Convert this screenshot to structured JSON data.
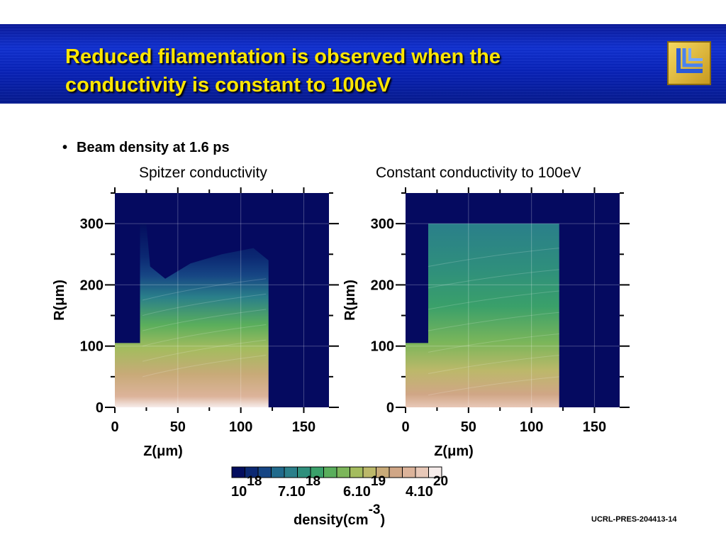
{
  "header": {
    "title_line1": "Reduced filamentation is observed when the",
    "title_line2": "conductivity is constant to 100eV"
  },
  "bullet": {
    "text": "Beam density at 1.6 ps"
  },
  "footer": {
    "id": "UCRL-PRES-204413-14"
  },
  "colors": {
    "header_bg": "#0a1fb0",
    "title_text": "#ffe600",
    "plot_bg": "#050a60"
  },
  "chart_data": [
    {
      "type": "heatmap",
      "title": "Spitzer conductivity",
      "xlabel": "Z(μm)",
      "ylabel": "R(μm)",
      "xlim": [
        0,
        170
      ],
      "ylim": [
        0,
        350
      ],
      "xticks": [
        "0",
        "50",
        "100",
        "150"
      ],
      "yticks": [
        "0",
        "100",
        "200",
        "300"
      ],
      "target_region": {
        "z_front": 0,
        "z_back": 122,
        "r_max_edge": 105,
        "filament_edge_r": 300
      },
      "grid": true
    },
    {
      "type": "heatmap",
      "title": "Constant conductivity to 100eV",
      "xlabel": "Z(μm)",
      "ylabel": "R(μm)",
      "xlim": [
        0,
        170
      ],
      "ylim": [
        0,
        350
      ],
      "xticks": [
        "0",
        "50",
        "100",
        "150"
      ],
      "yticks": [
        "0",
        "100",
        "200",
        "300"
      ],
      "target_region": {
        "z_front": 0,
        "z_back": 122,
        "r_max_edge": 105,
        "r_top": 300
      },
      "grid": true
    },
    {
      "type": "colorbar",
      "label_prefix": "density(cm",
      "label_exp": "-3",
      "label_suffix": ")",
      "tick_labels": [
        {
          "mantissa": "10",
          "exp": "18"
        },
        {
          "mantissa": "7.10",
          "exp": "18"
        },
        {
          "mantissa": "6.10",
          "exp": "19"
        },
        {
          "mantissa": "4.10",
          "exp": "20"
        }
      ],
      "colors": [
        "#030d5e",
        "#0b2872",
        "#164584",
        "#206a8c",
        "#2a7f8a",
        "#2f8f7c",
        "#3aa06a",
        "#5aae5c",
        "#7cb65a",
        "#a4bc5e",
        "#bcb86a",
        "#c8aa78",
        "#d0a686",
        "#dcb39a",
        "#e8c8b8",
        "#f6ecea"
      ]
    }
  ]
}
